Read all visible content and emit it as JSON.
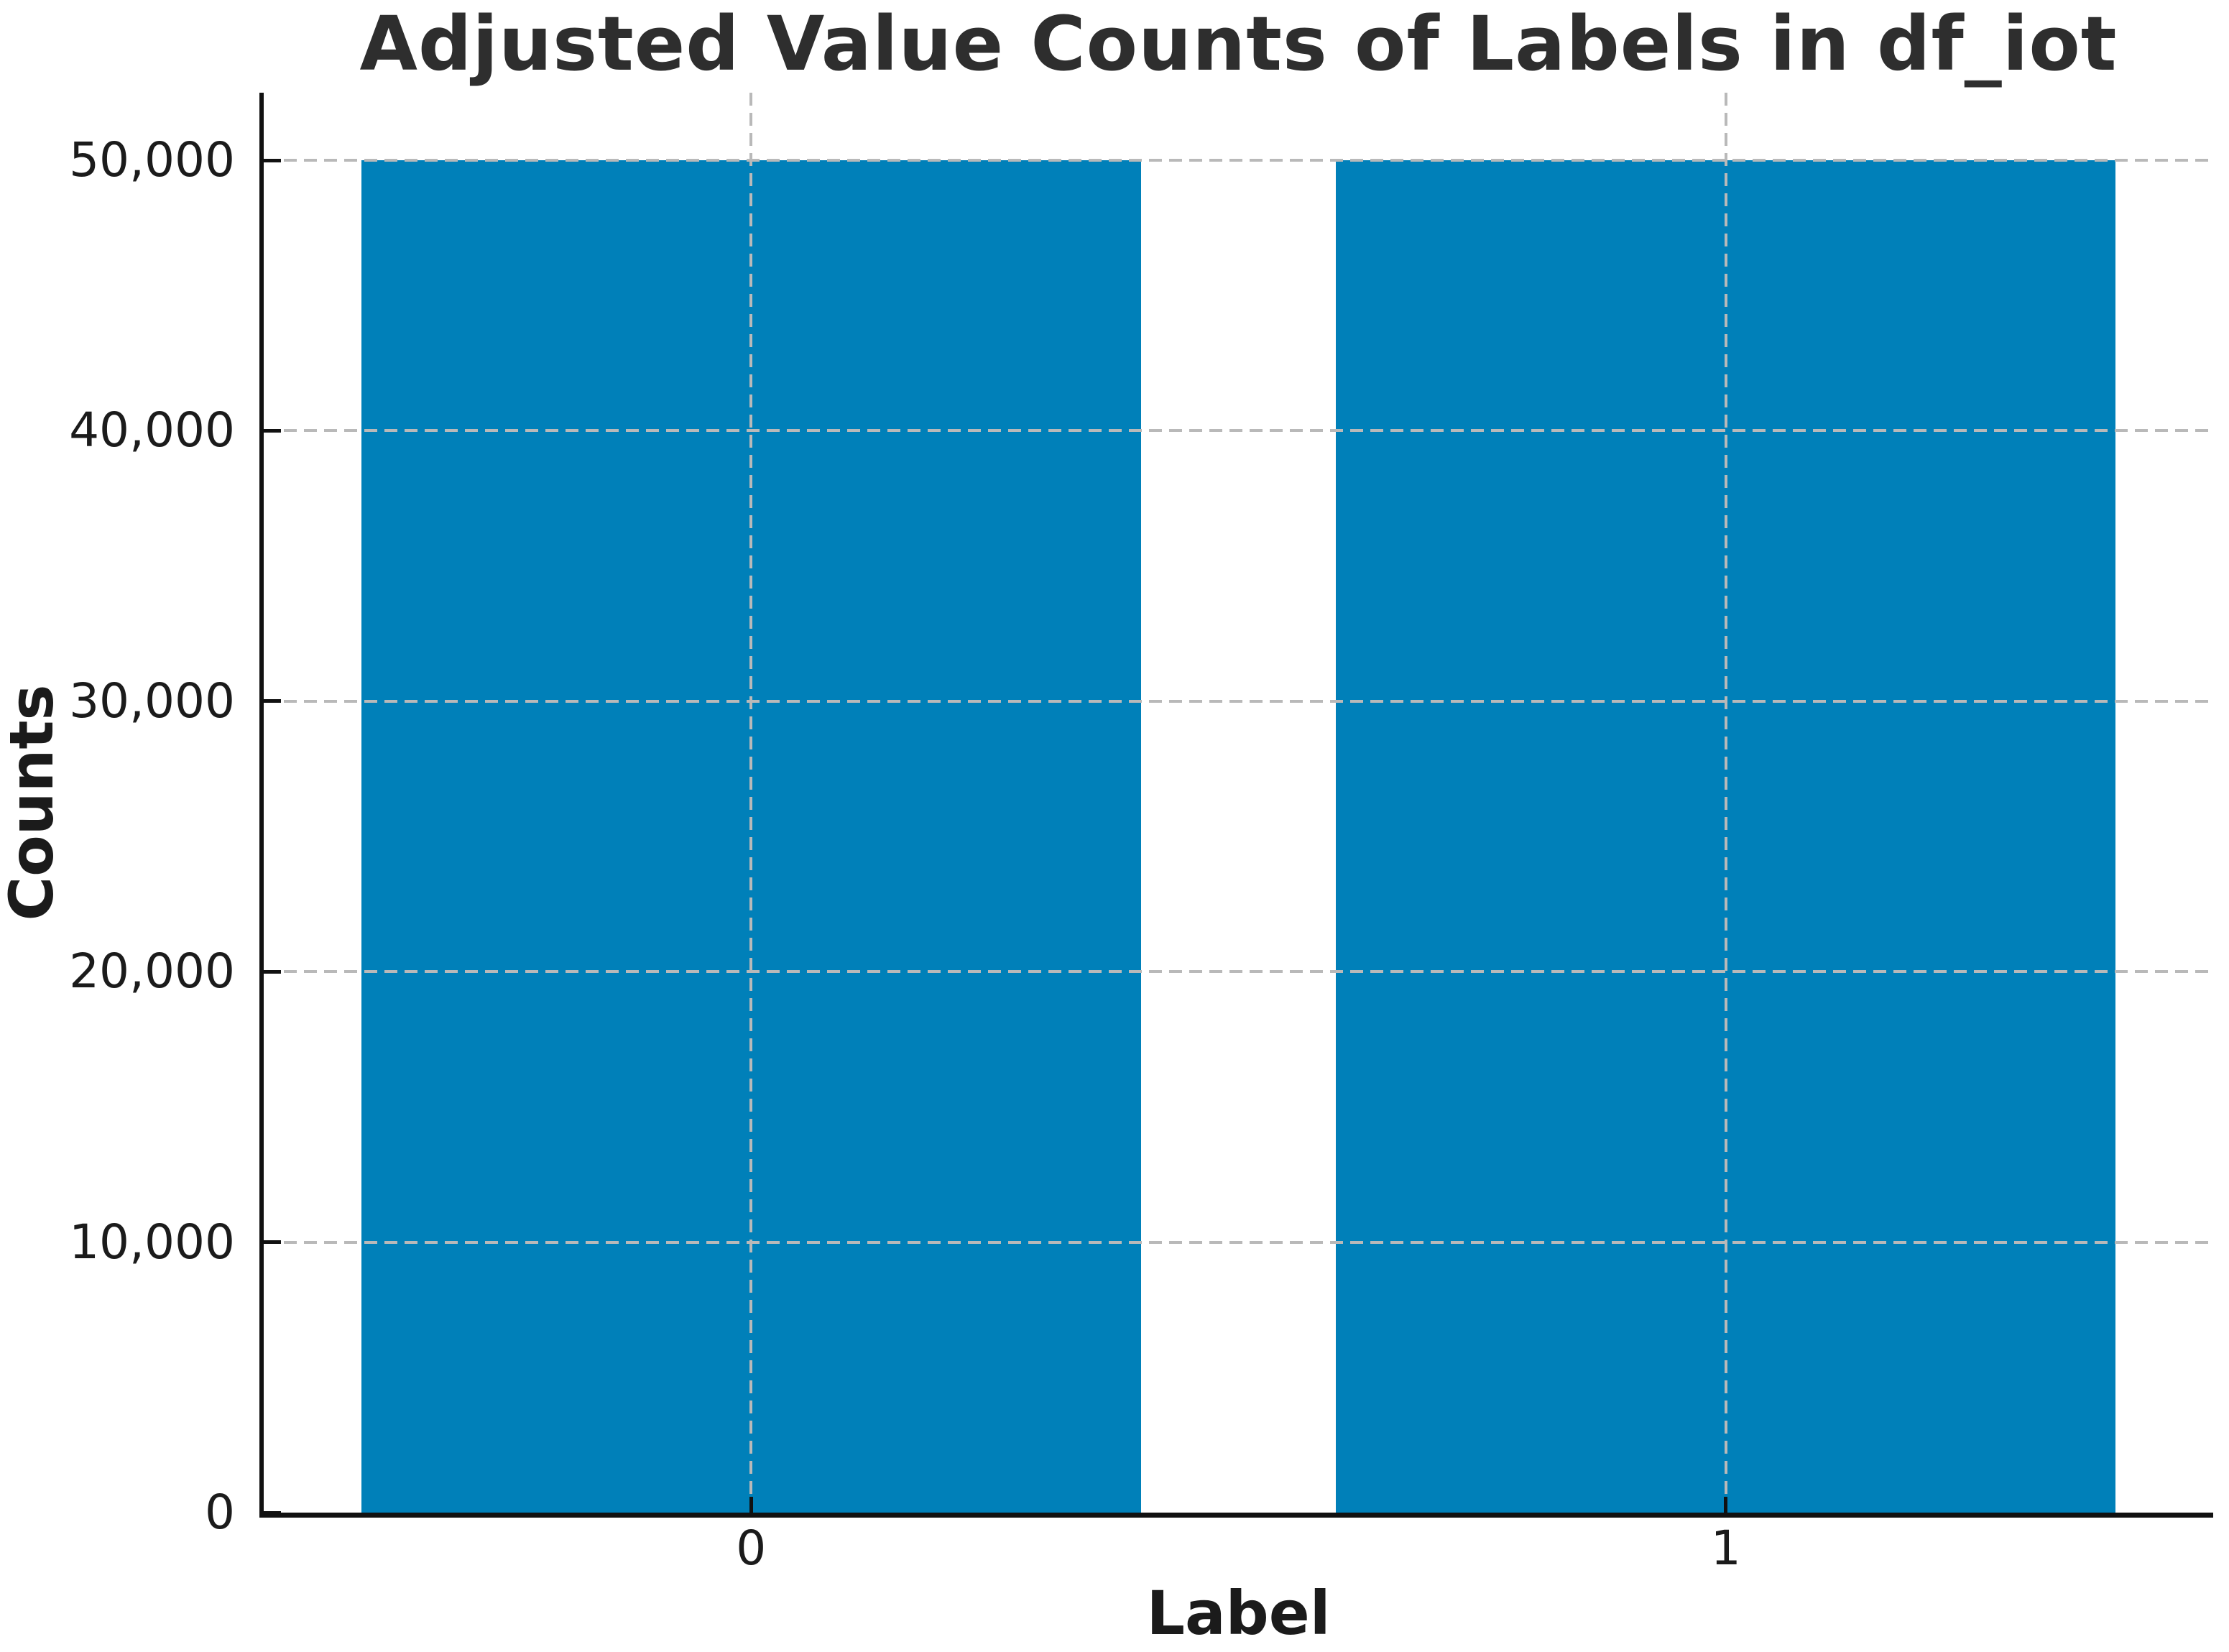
{
  "figure": {
    "background": "#ffffff"
  },
  "chart_data": {
    "type": "bar",
    "title": "Adjusted Value Counts of Labels in df_iot",
    "xlabel": "Label",
    "ylabel": "Counts",
    "categories": [
      "0",
      "1"
    ],
    "values": [
      50000,
      50000
    ],
    "ylim": [
      0,
      52500
    ],
    "yticks": [
      0,
      10000,
      20000,
      30000,
      40000,
      50000
    ],
    "ytick_labels": [
      "0",
      "10,000",
      "20,000",
      "30,000",
      "40,000",
      "50,000"
    ],
    "bar_width_fraction": 0.8,
    "bar_color": "#0080b9",
    "grid": {
      "horizontal": true,
      "vertical": true,
      "style": "dashed",
      "color": "#b9b9b9"
    },
    "legend": "none",
    "spines": [
      "left",
      "bottom"
    ],
    "tick_direction": "in",
    "axis_color": "#111111",
    "text_color": "#1b1b1b",
    "title_color": "#2e2e2e"
  }
}
